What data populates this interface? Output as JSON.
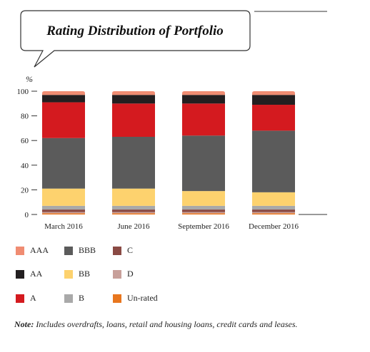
{
  "chart_data": {
    "type": "bar",
    "stacked": true,
    "title": "Rating Distribution of Portfolio",
    "ylabel": "%",
    "ylim": [
      0,
      100
    ],
    "yticks": [
      0,
      20,
      40,
      60,
      80,
      100
    ],
    "categories": [
      "March 2016",
      "June 2016",
      "September 2016",
      "December 2016"
    ],
    "series": [
      {
        "name": "Un-rated",
        "color": "#e8761e",
        "values": [
          1,
          1,
          1,
          1
        ]
      },
      {
        "name": "D",
        "color": "#c8a09a",
        "values": [
          1,
          1,
          1,
          1
        ]
      },
      {
        "name": "C",
        "color": "#8a4a44",
        "values": [
          2,
          2,
          2,
          2
        ]
      },
      {
        "name": "B",
        "color": "#a9a9a9",
        "values": [
          3,
          3,
          3,
          3
        ]
      },
      {
        "name": "BB",
        "color": "#fdd26e",
        "values": [
          14,
          14,
          12,
          11
        ]
      },
      {
        "name": "BBB",
        "color": "#5b5b5b",
        "values": [
          41,
          42,
          45,
          50
        ]
      },
      {
        "name": "A",
        "color": "#d41a1f",
        "values": [
          29,
          27,
          26,
          21
        ]
      },
      {
        "name": "AA",
        "color": "#231f20",
        "values": [
          6,
          7,
          7,
          8
        ]
      },
      {
        "name": "AAA",
        "color": "#f08c72",
        "values": [
          3,
          3,
          3,
          3
        ]
      }
    ],
    "legend": [
      {
        "label": "AAA",
        "color": "#f08c72"
      },
      {
        "label": "BBB",
        "color": "#5b5b5b"
      },
      {
        "label": "C",
        "color": "#8a4a44"
      },
      {
        "label": "AA",
        "color": "#231f20"
      },
      {
        "label": "BB",
        "color": "#fdd26e"
      },
      {
        "label": "D",
        "color": "#c8a09a"
      },
      {
        "label": "A",
        "color": "#d41a1f"
      },
      {
        "label": "B",
        "color": "#a9a9a9"
      },
      {
        "label": "Un-rated",
        "color": "#e8761e"
      }
    ],
    "grid": false,
    "legend_position": "bottom"
  },
  "note": {
    "prefix": "Note:",
    "text": " Includes overdrafts, loans, retail and housing loans, credit cards and leases."
  }
}
